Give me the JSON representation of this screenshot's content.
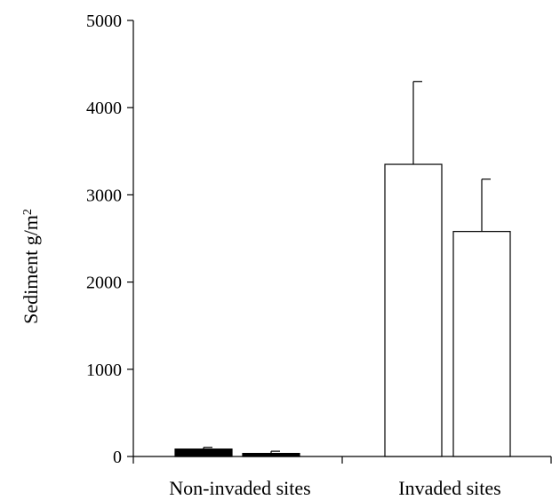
{
  "chart_data": {
    "type": "bar",
    "title": "",
    "xlabel": "",
    "ylabel": "Sediment g/m",
    "ylabel_superscript": "2",
    "ylim": [
      0,
      5000
    ],
    "yticks": [
      "0",
      "1000",
      "2000",
      "3000",
      "4000",
      "5000"
    ],
    "grid": false,
    "legend": "none",
    "categories": [
      "Non-invaded sites",
      "Invaded sites"
    ],
    "bars": [
      {
        "category": "Non-invaded sites",
        "value": 85,
        "error": 20,
        "fill": "#000000"
      },
      {
        "category": "Non-invaded sites",
        "value": 35,
        "error": 25,
        "fill": "#000000"
      },
      {
        "category": "Invaded sites",
        "value": 3350,
        "error": 950,
        "fill": "#ffffff"
      },
      {
        "category": "Invaded sites",
        "value": 2580,
        "error": 600,
        "fill": "#ffffff"
      }
    ]
  }
}
